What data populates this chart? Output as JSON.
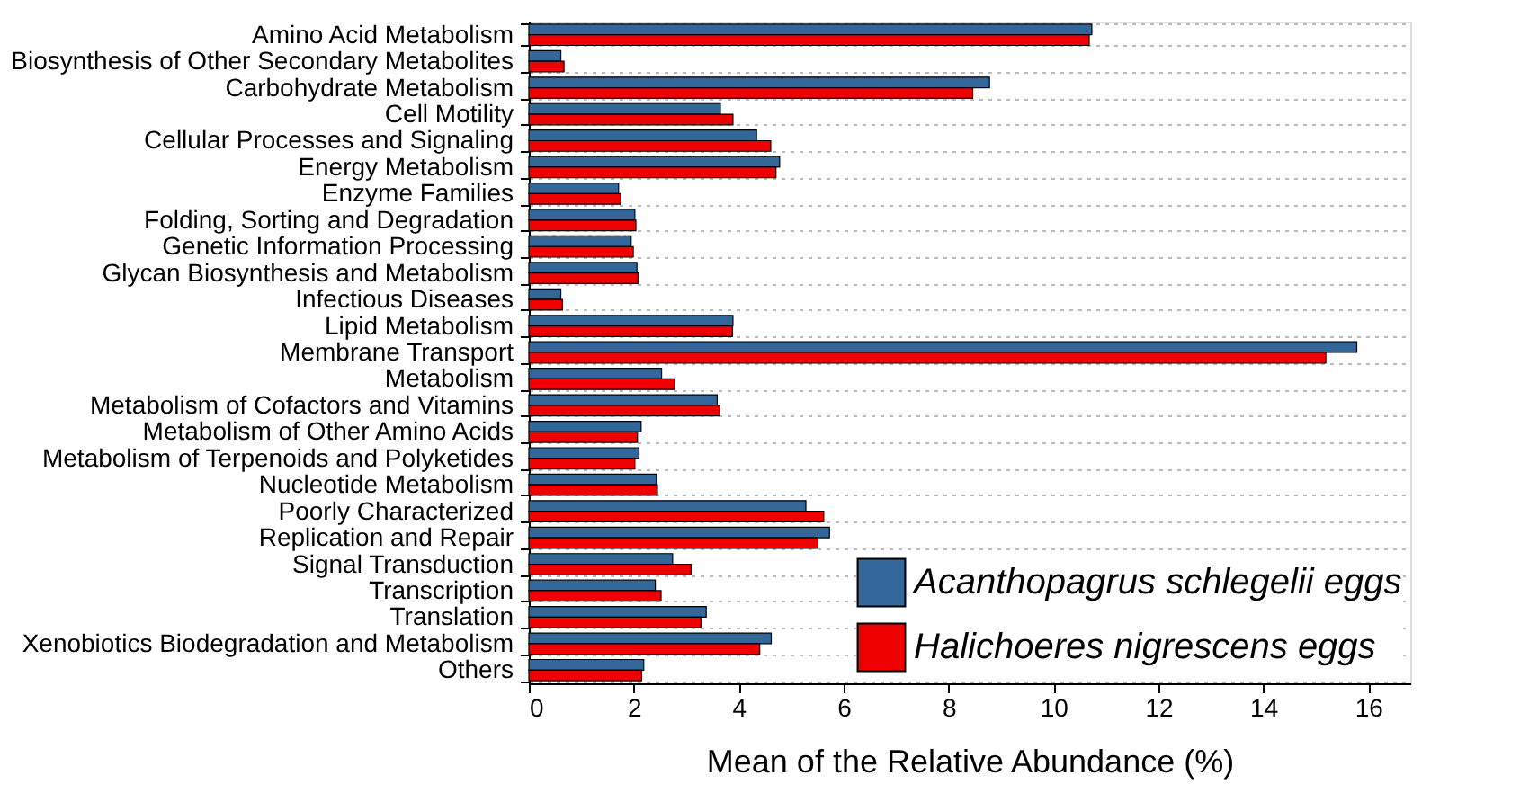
{
  "chart_data": {
    "type": "bar",
    "orientation": "horizontal",
    "xlabel": "Mean of the Relative Abundance (%)",
    "categories": [
      "Amino Acid Metabolism",
      "Biosynthesis of Other Secondary Metabolites",
      "Carbohydrate Metabolism",
      "Cell Motility",
      "Cellular Processes and Signaling",
      "Energy Metabolism",
      "Enzyme Families",
      "Folding, Sorting and Degradation",
      "Genetic Information Processing",
      "Glycan Biosynthesis and Metabolism",
      "Infectious Diseases",
      "Lipid Metabolism",
      "Membrane Transport",
      "Metabolism",
      "Metabolism of Cofactors and Vitamins",
      "Metabolism of Other Amino Acids",
      "Metabolism of Terpenoids and Polyketides",
      "Nucleotide Metabolism",
      "Poorly Characterized",
      "Replication and Repair",
      "Signal Transduction",
      "Transcription",
      "Translation",
      "Xenobiotics Biodegradation and Metabolism",
      "Others"
    ],
    "series": [
      {
        "name": "Acanthopagrus schlegelii eggs",
        "color": "#336699",
        "values": [
          10.73,
          0.61,
          8.78,
          3.65,
          4.34,
          4.78,
          1.71,
          2.02,
          1.95,
          2.06,
          0.61,
          3.89,
          15.78,
          2.53,
          3.59,
          2.14,
          2.1,
          2.43,
          5.28,
          5.73,
          2.74,
          2.41,
          3.38,
          4.62,
          2.19
        ]
      },
      {
        "name": "Halichoeres nigrescens eggs",
        "color": "#ee0000",
        "values": [
          10.68,
          0.67,
          8.46,
          3.89,
          4.61,
          4.71,
          1.75,
          2.04,
          1.99,
          2.08,
          0.64,
          3.88,
          15.19,
          2.77,
          3.64,
          2.07,
          2.02,
          2.45,
          5.62,
          5.51,
          3.09,
          2.52,
          3.28,
          4.4,
          2.15
        ]
      }
    ],
    "xlim": [
      0,
      16.8
    ],
    "xticks": [
      0,
      2,
      4,
      6,
      8,
      10,
      12,
      14,
      16
    ],
    "grid": "y",
    "legend": "bottom right"
  }
}
